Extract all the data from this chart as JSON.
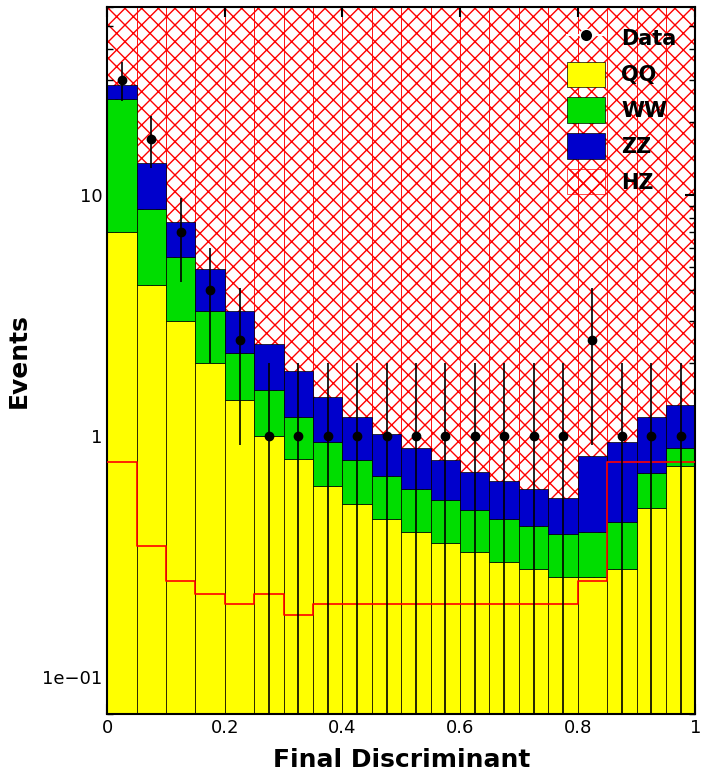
{
  "bin_edges": [
    0.0,
    0.05,
    0.1,
    0.15,
    0.2,
    0.25,
    0.3,
    0.35,
    0.4,
    0.45,
    0.5,
    0.55,
    0.6,
    0.65,
    0.7,
    0.75,
    0.8,
    0.85,
    0.9,
    0.95,
    1.0
  ],
  "QQ": [
    7.0,
    4.2,
    3.0,
    2.0,
    1.4,
    1.0,
    0.8,
    0.62,
    0.52,
    0.45,
    0.4,
    0.36,
    0.33,
    0.3,
    0.28,
    0.26,
    0.26,
    0.28,
    0.5,
    0.75
  ],
  "WW": [
    18.0,
    4.5,
    2.5,
    1.3,
    0.8,
    0.55,
    0.4,
    0.32,
    0.27,
    0.23,
    0.2,
    0.18,
    0.16,
    0.15,
    0.14,
    0.13,
    0.14,
    0.16,
    0.2,
    0.14
  ],
  "ZZ": [
    3.5,
    4.8,
    2.2,
    1.6,
    1.1,
    0.85,
    0.65,
    0.5,
    0.4,
    0.34,
    0.29,
    0.25,
    0.22,
    0.2,
    0.18,
    0.16,
    0.42,
    0.5,
    0.5,
    0.45
  ],
  "HZ": [
    0.78,
    0.35,
    0.25,
    0.22,
    0.2,
    0.22,
    0.18,
    0.2,
    0.2,
    0.2,
    0.2,
    0.2,
    0.2,
    0.2,
    0.2,
    0.2,
    0.25,
    0.78,
    0.78,
    0.78
  ],
  "data_x": [
    0.025,
    0.075,
    0.125,
    0.175,
    0.225,
    0.275,
    0.325,
    0.375,
    0.425,
    0.475,
    0.525,
    0.575,
    0.625,
    0.675,
    0.725,
    0.775,
    0.825,
    0.875,
    0.925,
    0.975
  ],
  "data_y": [
    30.0,
    17.0,
    7.0,
    4.0,
    2.5,
    1.0,
    1.0,
    1.0,
    1.0,
    1.0,
    1.0,
    1.0,
    1.0,
    1.0,
    1.0,
    1.0,
    2.5,
    1.0,
    1.0,
    1.0
  ],
  "QQ_color": "#ffff00",
  "WW_color": "#00dd00",
  "ZZ_color": "#0000cc",
  "HZ_color": "#ff0000",
  "xlabel": "Final Discriminant",
  "ylabel": "Events",
  "ylim_lo": 0.07,
  "ylim_hi": 60.0,
  "xlim_lo": 0.0,
  "xlim_hi": 1.0,
  "axis_fontsize": 18,
  "legend_fontsize": 15,
  "tick_fontsize": 13
}
